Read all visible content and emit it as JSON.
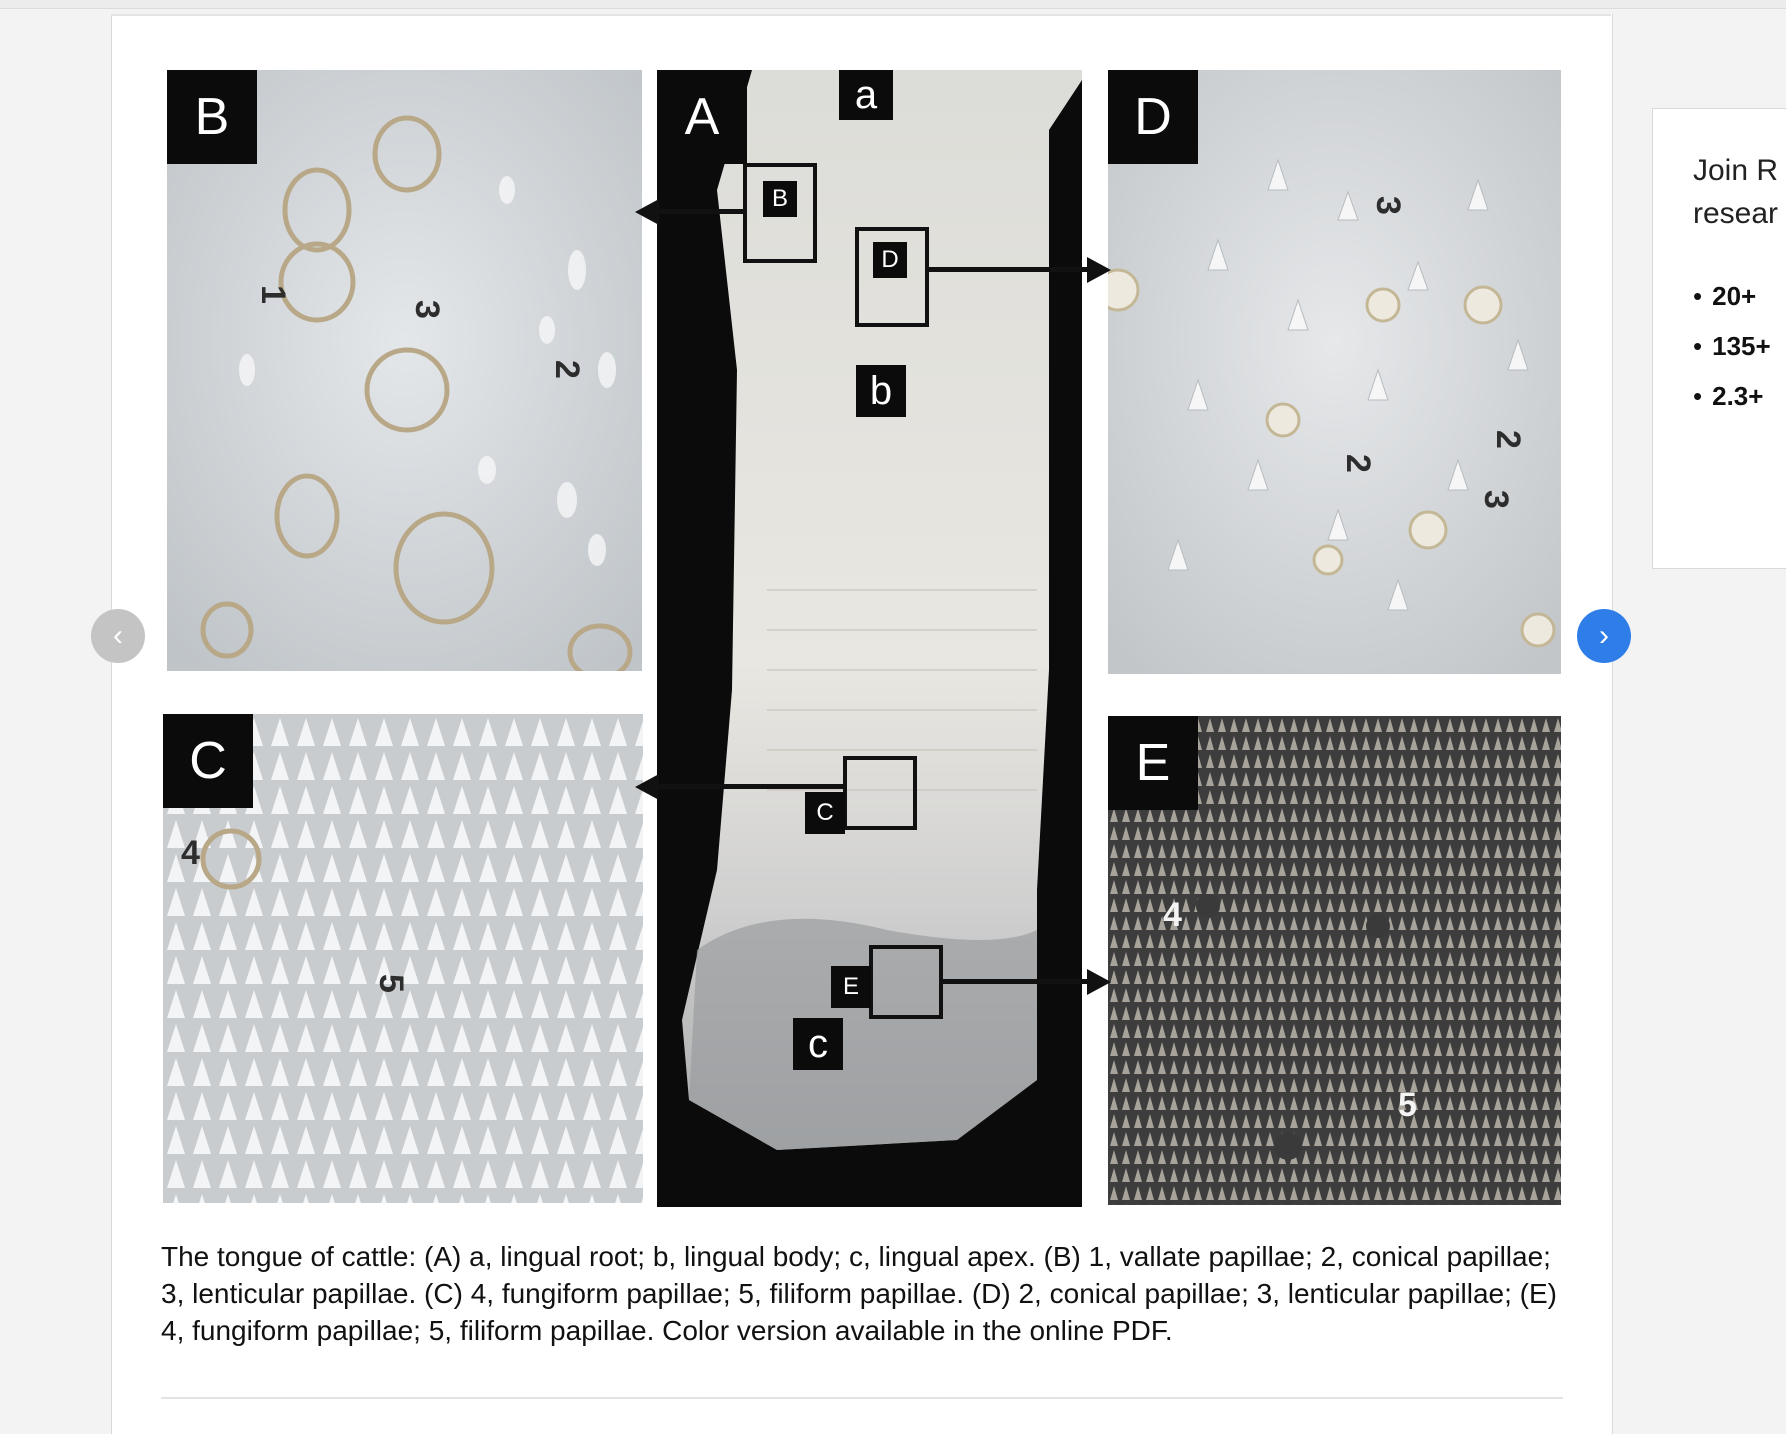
{
  "figure": {
    "panels": {
      "A": {
        "label": "A",
        "zones": {
          "a": "a",
          "b": "b",
          "c": "c"
        },
        "insets": {
          "B": "B",
          "C": "C",
          "D": "D",
          "E": "E"
        }
      },
      "B": {
        "label": "B",
        "numbers": [
          "1",
          "3",
          "2"
        ]
      },
      "C": {
        "label": "C",
        "numbers": [
          "4",
          "5"
        ]
      },
      "D": {
        "label": "D",
        "numbers": [
          "3",
          "2",
          "2",
          "3"
        ]
      },
      "E": {
        "label": "E",
        "numbers": [
          "4",
          "5"
        ]
      }
    },
    "caption": "The tongue of cattle: (A) a, lingual root; b, lingual body; c, lingual apex. (B) 1, vallate papillae; 2, conical papillae; 3, lenticular papillae. (C) 4, fungiform papillae; 5, filiform papillae. (D) 2, conical papillae; 3, lenticular papillae; (E) 4, fungiform papillae; 5, filiform papillae. Color version available in the online PDF."
  },
  "carousel": {
    "prev_icon": "‹",
    "next_icon": "›"
  },
  "sidebar": {
    "title_line1": "Join R",
    "title_line2": "resear",
    "items": [
      "20+ ",
      "135+",
      "2.3+"
    ]
  },
  "colors": {
    "accent": "#2f7de8",
    "label_bg": "#0b0b0b"
  }
}
